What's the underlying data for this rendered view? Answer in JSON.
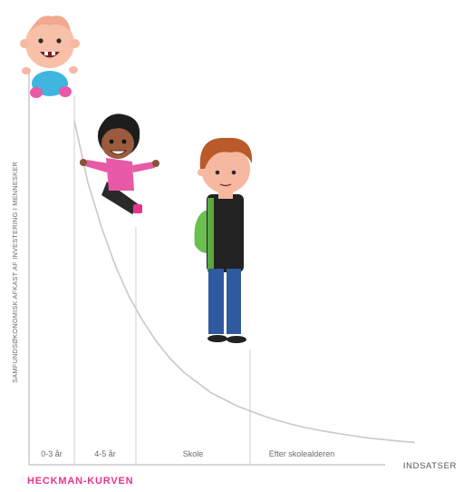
{
  "chart_data": {
    "type": "line",
    "title": "HECKMAN-KURVEN",
    "ylabel": "SAMFUNDSØKONOMISK AFKAST AF INVESTERING I MENNESKER",
    "xlabel": "INDSATSER",
    "categories": [
      "0-3 år",
      "4-5 år",
      "Skole",
      "Efter skolealderen"
    ],
    "x": [
      0,
      1,
      2,
      3,
      4,
      5,
      6,
      7,
      8,
      9,
      10,
      11,
      12,
      13,
      14,
      15,
      16,
      17,
      18,
      19,
      20,
      21,
      22,
      23,
      24,
      25
    ],
    "values": [
      100,
      82,
      69,
      58,
      49,
      42,
      36,
      31,
      27,
      24,
      21,
      19,
      17,
      15.5,
      14,
      12.8,
      11.7,
      10.8,
      10,
      9.3,
      8.7,
      8.1,
      7.6,
      7.2,
      6.8,
      6.5
    ],
    "xlim": [
      0,
      25
    ],
    "ylim": [
      0,
      110
    ],
    "grid": false,
    "legend": "none"
  },
  "colors": {
    "curve": "#c9c9c9",
    "axis": "#bdbdbd",
    "accent": "#e8348a"
  },
  "illustrations": [
    "baby-figure",
    "girl-figure",
    "boy-figure"
  ]
}
